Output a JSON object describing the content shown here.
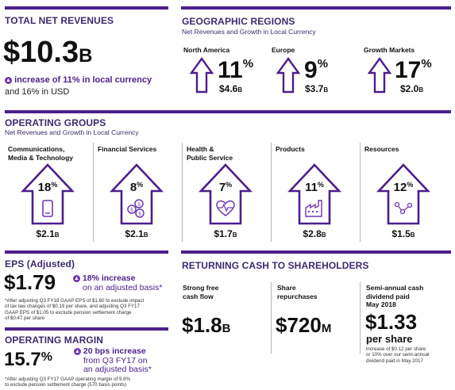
{
  "total_net_revenues": {
    "title": "TOTAL NET REVENUES",
    "value_main": "$10.3",
    "value_unit": "B",
    "increase_text": "increase of 11% in local currency",
    "usd_text": "and 16% in USD"
  },
  "geographic_regions": {
    "title": "GEOGRAPHIC REGIONS",
    "subtitle": "Net Revenues and Growth in Local Currency",
    "regions": [
      {
        "name": "North America",
        "pct": "11",
        "value": "$4.6",
        "unit": "B"
      },
      {
        "name": "Europe",
        "pct": "9",
        "value": "$3.7",
        "unit": "B"
      },
      {
        "name": "Growth Markets",
        "pct": "17",
        "value": "$2.0",
        "unit": "B"
      }
    ]
  },
  "operating_groups": {
    "title": "OPERATING GROUPS",
    "subtitle": "Net Revenues and Growth in Local Currency",
    "groups": [
      {
        "name_line1": "Communications,",
        "name_line2": "Media & Technology",
        "pct": "18",
        "value": "$2.1",
        "unit": "B",
        "icon": "smartphone-icon"
      },
      {
        "name_line1": "Financial Services",
        "name_line2": "",
        "pct": "8",
        "value": "$2.1",
        "unit": "B",
        "icon": "coins-icon"
      },
      {
        "name_line1": "Health &",
        "name_line2": "Public Service",
        "pct": "7",
        "value": "$1.7",
        "unit": "B",
        "icon": "heartbeat-icon"
      },
      {
        "name_line1": "Products",
        "name_line2": "",
        "pct": "11",
        "value": "$2.8",
        "unit": "B",
        "icon": "factory-icon"
      },
      {
        "name_line1": "Resources",
        "name_line2": "",
        "pct": "12",
        "value": "$1.5",
        "unit": "B",
        "icon": "molecule-icon"
      }
    ]
  },
  "eps": {
    "title": "EPS (Adjusted)",
    "value": "$1.79",
    "increase_line1": "18% increase",
    "increase_line2": "on an adjusted basis*",
    "footnote_1": "*After adjusting Q3 FY18 GAAP EPS of $1.60 to exclude impact",
    "footnote_2": "of tax law changes of $0.19 per share, and adjusting Q3 FY17",
    "footnote_3": "GAAP EPS of $1.05 to exclude pension settlement charge",
    "footnote_4": "of $0.47 per share"
  },
  "operating_margin": {
    "title": "OPERATING MARGIN",
    "value": "15.7",
    "unit": "%",
    "increase_line1": "20 bps increase",
    "increase_line2": "from Q3 FY17 on",
    "increase_line3": "an adjusted basis*",
    "footnote_1": "*After adjusting Q3 FY17 GAAP operating margin of 9.8%",
    "footnote_2": "to exclude pension settlement charge (570 basis points)"
  },
  "returning_cash": {
    "title": "RETURNING CASH TO SHAREHOLDERS",
    "items": [
      {
        "label_1": "Strong free",
        "label_2": "cash flow",
        "label_3": "",
        "value": "$1.8",
        "unit": "B"
      },
      {
        "label_1": "Share",
        "label_2": "repurchases",
        "label_3": "",
        "value": "$720",
        "unit": "M"
      },
      {
        "label_1": "Semi-annual cash",
        "label_2": "dividend paid",
        "label_3": "May 2018",
        "value": "$1.33",
        "unit": "per share"
      }
    ],
    "dividend_note_1": "increase of $0.12 per share",
    "dividend_note_2": "or 10% over our semi-annual",
    "dividend_note_3": "dividend paid in May 2017"
  },
  "colors": {
    "accent": "#4b1f8c",
    "icon_accent": "#6f37b3"
  }
}
